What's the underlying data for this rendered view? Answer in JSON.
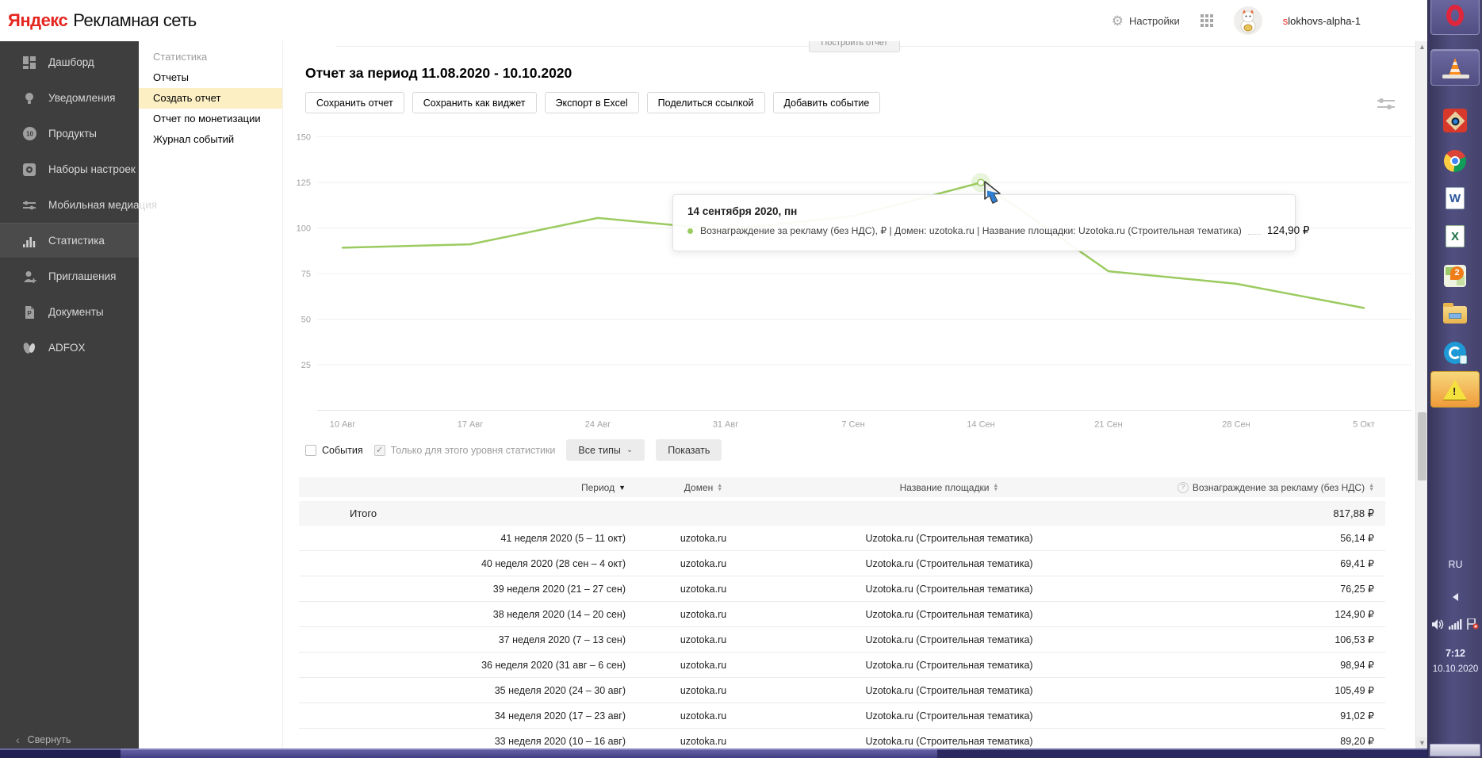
{
  "header": {
    "logo_primary": "Яндекс",
    "logo_secondary": "Рекламная сеть",
    "settings_label": "Настройки",
    "username_accent": "s",
    "username_rest": "lokhovs-alpha-1"
  },
  "sidebar": {
    "items": [
      {
        "icon": "dashboard-icon",
        "label": "Дашборд"
      },
      {
        "icon": "notifications-icon",
        "label": "Уведомления"
      },
      {
        "icon": "products-icon",
        "label": "Продукты"
      },
      {
        "icon": "settings-sets-icon",
        "label": "Наборы настроек"
      },
      {
        "icon": "mobile-mediation-icon",
        "label": "Мобильная медиация"
      },
      {
        "icon": "statistics-icon",
        "label": "Статистика"
      },
      {
        "icon": "invitations-icon",
        "label": "Приглашения"
      },
      {
        "icon": "documents-icon",
        "label": "Документы"
      },
      {
        "icon": "adfox-icon",
        "label": "ADFOX"
      }
    ],
    "active": "Статистика",
    "collapse_label": "Свернуть"
  },
  "submenu": {
    "title": "Статистика",
    "items": [
      "Отчеты",
      "Создать отчет",
      "Отчет по монетизации",
      "Журнал событий"
    ],
    "active": "Создать отчет"
  },
  "report": {
    "clipped_button": "Построить отчет",
    "title": "Отчет за период 11.08.2020 - 10.10.2020",
    "toolbar": [
      "Сохранить отчет",
      "Сохранить как виджет",
      "Экспорт в Excel",
      "Поделиться ссылкой",
      "Добавить событие"
    ]
  },
  "chart_data": {
    "type": "line",
    "title": "Отчет за период 11.08.2020 - 10.10.2020",
    "x_tick_labels": [
      "10 Авг",
      "17 Авг",
      "24 Авг",
      "31 Авг",
      "7 Сен",
      "14 Сен",
      "21 Сен",
      "28 Сен",
      "5 Окт"
    ],
    "y_ticks": [
      25,
      50,
      75,
      100,
      125,
      150
    ],
    "ylim": [
      0,
      150
    ],
    "grid": "horizontal",
    "legend": "none",
    "series": [
      {
        "name": "Вознаграждение за рекламу (без НДС), ₽ | Домен: uzotoka.ru | Название площадки: Uzotoka.ru (Строительная тематика)",
        "color": "#9bcb60",
        "values": [
          89.2,
          91.02,
          105.49,
          98.94,
          106.53,
          124.9,
          76.25,
          69.41,
          56.14
        ]
      }
    ],
    "highlighted_point": {
      "index": 5,
      "x_label": "14 Сен",
      "value": 124.9
    }
  },
  "tooltip": {
    "title": "14 сентября 2020, пн",
    "series_label": "Вознаграждение за рекламу (без НДС), ₽ | Домен: uzotoka.ru | Название площадки: Uzotoka.ru (Строительная тематика)",
    "value": "124,90 ₽"
  },
  "filters": {
    "events_label": "События",
    "level_label": "Только для этого уровня статистики",
    "types_dropdown": "Все типы",
    "show_button": "Показать"
  },
  "table": {
    "headers": [
      "Период",
      "Домен",
      "Название площадки",
      "Вознаграждение за рекламу (без НДС)"
    ],
    "total_label": "Итого",
    "total_value": "817,88 ₽",
    "rows": [
      [
        "41 неделя 2020 (5 – 11 окт)",
        "uzotoka.ru",
        "Uzotoka.ru (Строительная тематика)",
        "56,14 ₽"
      ],
      [
        "40 неделя 2020 (28 сен – 4 окт)",
        "uzotoka.ru",
        "Uzotoka.ru (Строительная тематика)",
        "69,41 ₽"
      ],
      [
        "39 неделя 2020 (21 – 27 сен)",
        "uzotoka.ru",
        "Uzotoka.ru (Строительная тематика)",
        "76,25 ₽"
      ],
      [
        "38 неделя 2020 (14 – 20 сен)",
        "uzotoka.ru",
        "Uzotoka.ru (Строительная тематика)",
        "124,90 ₽"
      ],
      [
        "37 неделя 2020 (7 – 13 сен)",
        "uzotoka.ru",
        "Uzotoka.ru (Строительная тематика)",
        "106,53 ₽"
      ],
      [
        "36 неделя 2020 (31 авг – 6 сен)",
        "uzotoka.ru",
        "Uzotoka.ru (Строительная тематика)",
        "98,94 ₽"
      ],
      [
        "35 неделя 2020 (24 – 30 авг)",
        "uzotoka.ru",
        "Uzotoka.ru (Строительная тематика)",
        "105,49 ₽"
      ],
      [
        "34 неделя 2020 (17 – 23 авг)",
        "uzotoka.ru",
        "Uzotoka.ru (Строительная тематика)",
        "91,02 ₽"
      ],
      [
        "33 неделя 2020 (10 – 16 авг)",
        "uzotoka.ru",
        "Uzotoka.ru (Строительная тематика)",
        "89,20 ₽"
      ]
    ]
  },
  "taskbar": {
    "icons": [
      "opera",
      "vlc",
      "image-viewer",
      "chrome",
      "word",
      "excel",
      "2gis",
      "file-explorer",
      "media-converter",
      "warning"
    ],
    "language": "RU",
    "time": "7:12",
    "date": "10.10.2020"
  }
}
